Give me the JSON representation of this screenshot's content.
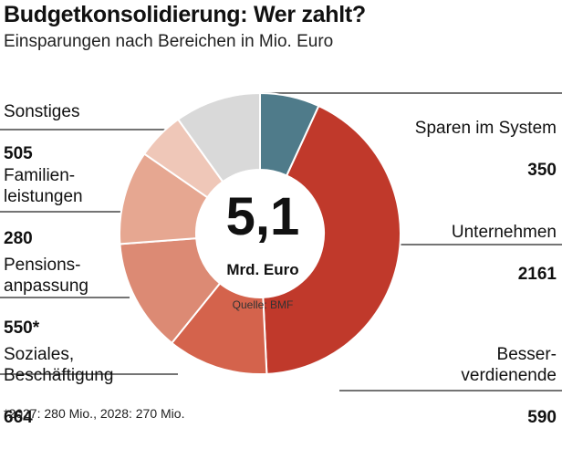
{
  "title": "Budgetkonsolidierung: Wer zahlt?",
  "subtitle": "Einsparungen nach Bereichen in Mio. Euro",
  "center": {
    "value": "5,1",
    "unit": "Mrd. Euro",
    "source": "Quelle: BMF"
  },
  "footnote": "*2027: 280 Mio., 2028: 270 Mio.",
  "chart_data": {
    "type": "pie",
    "donut": true,
    "unit": "Mio. Euro",
    "slices": [
      {
        "name": "Sparen im System",
        "value": 350,
        "value_label": "350",
        "color": "#4f7b8a"
      },
      {
        "name": "Unternehmen",
        "value": 2161,
        "value_label": "2161",
        "color": "#c0392b"
      },
      {
        "name": "Besser-\nverdienende",
        "value": 590,
        "value_label": "590",
        "color": "#d4634c"
      },
      {
        "name": "Soziales,\nBeschäftigung",
        "value": 664,
        "value_label": "664",
        "color": "#dc8a74"
      },
      {
        "name": "Pensions-\nanpassung",
        "value": 550,
        "value_label": "550*",
        "color": "#e6a791"
      },
      {
        "name": "Familien-\nleistungen",
        "value": 280,
        "value_label": "280",
        "color": "#efc7b8"
      },
      {
        "name": "Sonstiges",
        "value": 505,
        "value_label": "505",
        "color": "#d9d9d9"
      }
    ]
  }
}
